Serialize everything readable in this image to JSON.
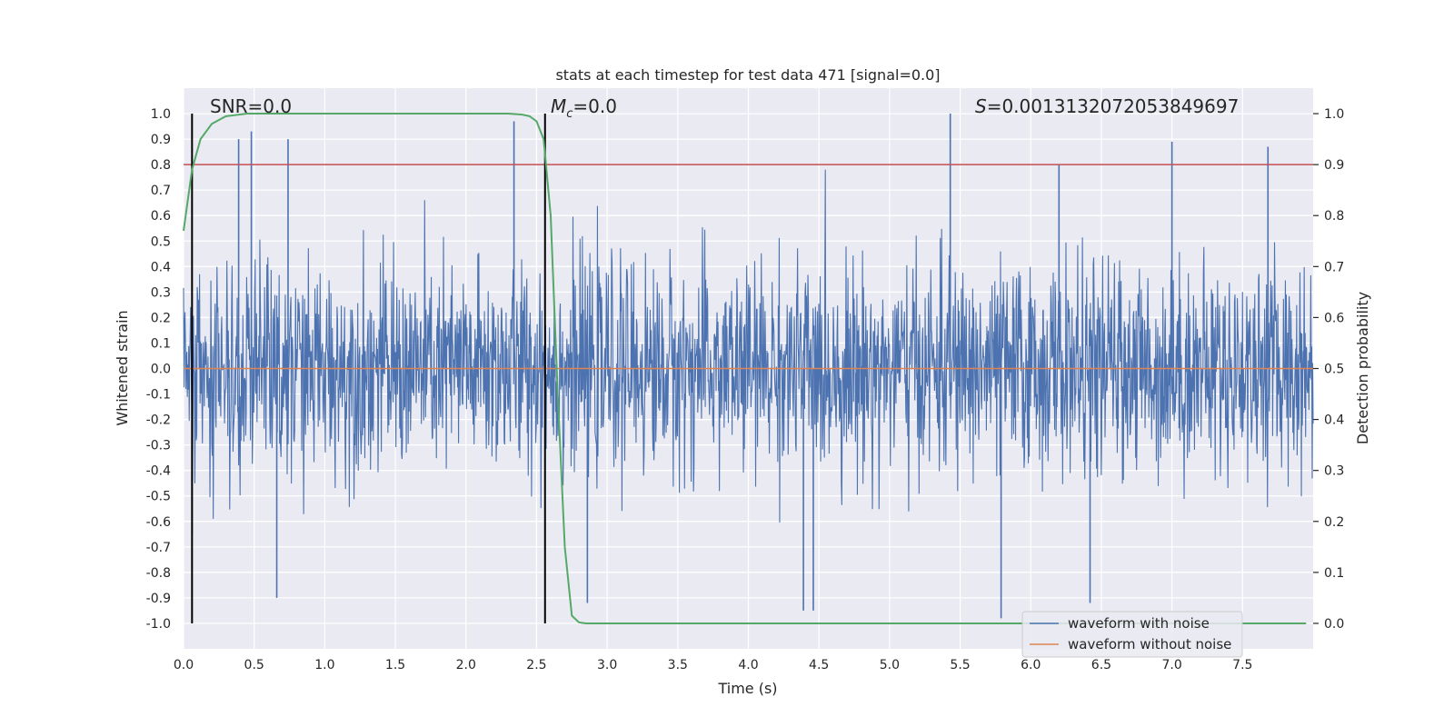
{
  "chart_data": {
    "type": "line",
    "title": "stats at each timestep for test data 471 [signal=0.0]",
    "xlabel": "Time (s)",
    "ylabel_left": "Whitened strain",
    "ylabel_right": "Detection probability",
    "xlim": [
      0.0,
      8.0
    ],
    "ylim_left": [
      -1.1,
      1.1
    ],
    "ylim_right": [
      -0.05,
      1.05
    ],
    "xticks": [
      "0.0",
      "0.5",
      "1.0",
      "1.5",
      "2.0",
      "2.5",
      "3.0",
      "3.5",
      "4.0",
      "4.5",
      "5.0",
      "5.5",
      "6.0",
      "6.5",
      "7.0",
      "7.5"
    ],
    "xtick_values": [
      0.0,
      0.5,
      1.0,
      1.5,
      2.0,
      2.5,
      3.0,
      3.5,
      4.0,
      4.5,
      5.0,
      5.5,
      6.0,
      6.5,
      7.0,
      7.5
    ],
    "yticks_left": [
      "1.0",
      "0.9",
      "0.8",
      "0.7",
      "0.6",
      "0.5",
      "0.4",
      "0.3",
      "0.2",
      "0.1",
      "0.0",
      "-0.1",
      "-0.2",
      "-0.3",
      "-0.4",
      "-0.5",
      "-0.6",
      "-0.7",
      "-0.8",
      "-0.9",
      "-1.0"
    ],
    "ytick_values_left": [
      1.0,
      0.9,
      0.8,
      0.7,
      0.6,
      0.5,
      0.4,
      0.3,
      0.2,
      0.1,
      0.0,
      -0.1,
      -0.2,
      -0.3,
      -0.4,
      -0.5,
      -0.6,
      -0.7,
      -0.8,
      -0.9,
      -1.0
    ],
    "yticks_right": [
      "1.0",
      "0.9",
      "0.8",
      "0.7",
      "0.6",
      "0.5",
      "0.4",
      "0.3",
      "0.2",
      "0.1",
      "0.0"
    ],
    "ytick_values_right": [
      1.0,
      0.9,
      0.8,
      0.7,
      0.6,
      0.5,
      0.4,
      0.3,
      0.2,
      0.1,
      0.0
    ],
    "annotations": {
      "snr": "SNR=0.0",
      "mc_symbol": "M",
      "mc_sub": "c",
      "mc_value": "=0.0",
      "s_symbol": "S",
      "s_value": "=0.0013132072053849697"
    },
    "vertical_lines_x": [
      0.06,
      2.56
    ],
    "threshold_line": {
      "axis": "right",
      "value": 0.9,
      "color": "#c44e52"
    },
    "series": [
      {
        "name": "waveform with noise",
        "axis": "left",
        "color": "#4c72b0",
        "description_values": "dense noise, envelope approx -0.95..0.97",
        "noise_seed": 471,
        "spikes": [
          {
            "x": 0.39,
            "y": 0.9
          },
          {
            "x": 0.48,
            "y": 0.93
          },
          {
            "x": 0.74,
            "y": 0.9
          },
          {
            "x": 2.34,
            "y": 0.97
          },
          {
            "x": 5.43,
            "y": 1.0
          },
          {
            "x": 7.0,
            "y": 0.89
          },
          {
            "x": 7.68,
            "y": 0.87
          },
          {
            "x": 6.2,
            "y": 0.8
          },
          {
            "x": 0.66,
            "y": -0.9
          },
          {
            "x": 4.39,
            "y": -0.95
          },
          {
            "x": 4.46,
            "y": -0.95
          },
          {
            "x": 5.79,
            "y": -0.98
          },
          {
            "x": 6.42,
            "y": -0.92
          },
          {
            "x": 2.86,
            "y": -0.92
          },
          {
            "x": 0.06,
            "y": -0.65
          }
        ]
      },
      {
        "name": "waveform without noise",
        "axis": "left",
        "color": "#dd8452",
        "x": [
          0.0,
          8.0
        ],
        "y": [
          0.0,
          0.0
        ]
      },
      {
        "name": "detection probability",
        "axis": "right",
        "color": "#55a868",
        "x": [
          0.0,
          0.06,
          0.12,
          0.2,
          0.3,
          0.45,
          0.6,
          1.0,
          1.5,
          2.0,
          2.3,
          2.4,
          2.45,
          2.5,
          2.55,
          2.6,
          2.65,
          2.7,
          2.75,
          2.8,
          2.85,
          3.0,
          4.0,
          5.0,
          6.0,
          7.0,
          7.95
        ],
        "y": [
          0.77,
          0.89,
          0.95,
          0.98,
          0.995,
          1.0,
          1.0,
          1.0,
          1.0,
          1.0,
          1.0,
          0.998,
          0.995,
          0.985,
          0.95,
          0.8,
          0.45,
          0.15,
          0.015,
          0.002,
          0.0,
          0.0,
          0.0,
          0.0,
          0.0,
          0.0,
          0.0
        ]
      }
    ],
    "legend": {
      "placement": "lower-right",
      "entries": [
        {
          "label": "waveform with noise",
          "color": "#4c72b0"
        },
        {
          "label": "waveform without noise",
          "color": "#dd8452"
        }
      ]
    },
    "grid": true
  },
  "colors": {
    "axes_bg": "#eaeaf2",
    "grid": "#ffffff",
    "text": "#262626"
  }
}
